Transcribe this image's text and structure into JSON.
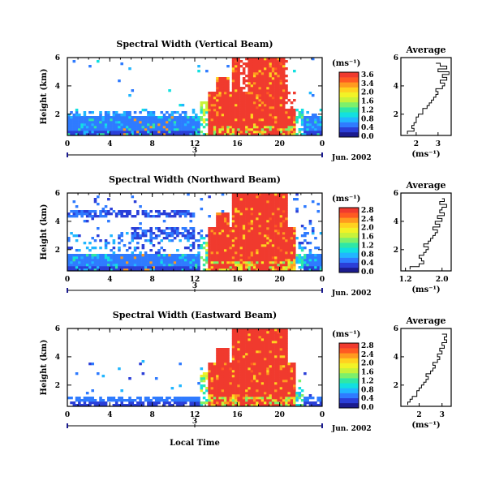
{
  "colormap": [
    "#1b1b8f",
    "#2b3fd8",
    "#2f7bff",
    "#21b6ff",
    "#12e0e0",
    "#2fe7a6",
    "#7df06b",
    "#c8f23a",
    "#f2f226",
    "#ffd21f",
    "#ff9a1f",
    "#ff5a22",
    "#f03a2e"
  ],
  "chart_data": [
    {
      "type": "heatmap",
      "title": "Spectral Width (Vertical Beam)",
      "xlabel": "",
      "ylabel": "Height (km)",
      "xlim": [
        0,
        24
      ],
      "ylim": [
        0.5,
        6
      ],
      "xticks": [
        "0",
        "4",
        "8",
        "12",
        "16",
        "20",
        "0"
      ],
      "yticks": [
        "2",
        "4",
        "6"
      ],
      "date_label": "Jun. 2002",
      "day_label": "3",
      "colorbar": {
        "unit": "(ms⁻¹)",
        "ticks": [
          "3.6",
          "3.4",
          "2.0",
          "1.6",
          "1.2",
          "0.8",
          "0.4",
          "0.0"
        ]
      },
      "profile": {
        "title": "Average",
        "xlabel": "(ms⁻¹)",
        "xticks": [
          "2",
          "3"
        ],
        "xlim": [
          1.3,
          3.6
        ],
        "heights": [
          0.6,
          0.8,
          1.0,
          1.2,
          1.4,
          1.6,
          1.8,
          2.0,
          2.2,
          2.4,
          2.6,
          2.8,
          3.0,
          3.2,
          3.4,
          3.6,
          3.8,
          4.0,
          4.2,
          4.4,
          4.6,
          4.8,
          5.0,
          5.2,
          5.4,
          5.6
        ],
        "values": [
          1.6,
          1.9,
          1.8,
          1.9,
          2.0,
          2.0,
          2.1,
          2.3,
          2.3,
          2.5,
          2.6,
          2.7,
          2.8,
          2.9,
          3.0,
          2.9,
          3.2,
          3.3,
          3.1,
          3.4,
          3.2,
          3.5,
          3.0,
          3.4,
          3.1,
          2.9
        ]
      }
    },
    {
      "type": "heatmap",
      "title": "Spectral Width (Northward Beam)",
      "xlabel": "",
      "ylabel": "Height (km)",
      "xlim": [
        0,
        24
      ],
      "ylim": [
        0.5,
        6
      ],
      "xticks": [
        "0",
        "4",
        "8",
        "12",
        "16",
        "20",
        "0"
      ],
      "yticks": [
        "2",
        "4",
        "6"
      ],
      "date_label": "Jun. 2002",
      "day_label": "3",
      "colorbar": {
        "unit": "(ms⁻¹)",
        "ticks": [
          "2.8",
          "2.4",
          "2.0",
          "1.6",
          "1.2",
          "0.8",
          "0.4",
          "0.0"
        ]
      },
      "profile": {
        "title": "Average",
        "xlabel": "(ms⁻¹)",
        "xticks": [
          "1.2",
          "2.0"
        ],
        "xlim": [
          1.1,
          2.2
        ],
        "heights": [
          0.6,
          0.8,
          1.0,
          1.2,
          1.4,
          1.6,
          1.8,
          2.0,
          2.2,
          2.4,
          2.6,
          2.8,
          3.0,
          3.2,
          3.4,
          3.6,
          3.8,
          4.0,
          4.2,
          4.4,
          4.6,
          4.8,
          5.0,
          5.2,
          5.4,
          5.6
        ],
        "values": [
          1.3,
          1.5,
          1.6,
          1.55,
          1.5,
          1.6,
          1.65,
          1.7,
          1.6,
          1.7,
          1.75,
          1.8,
          1.85,
          1.9,
          1.8,
          1.95,
          1.85,
          2.0,
          1.9,
          2.05,
          1.95,
          2.0,
          2.1,
          1.95,
          2.05,
          2.0
        ]
      }
    },
    {
      "type": "heatmap",
      "title": "Spectral Width (Eastward Beam)",
      "xlabel": "Local Time",
      "ylabel": "Height (km)",
      "xlim": [
        0,
        24
      ],
      "ylim": [
        0.5,
        6
      ],
      "xticks": [
        "0",
        "4",
        "8",
        "12",
        "16",
        "20",
        "0"
      ],
      "yticks": [
        "2",
        "4",
        "6"
      ],
      "date_label": "Jun. 2002",
      "day_label": "3",
      "colorbar": {
        "unit": "(ms⁻¹)",
        "ticks": [
          "2.8",
          "2.4",
          "2.0",
          "1.6",
          "1.2",
          "0.8",
          "0.4",
          "0.0"
        ]
      },
      "profile": {
        "title": "Average",
        "xlabel": "(ms⁻¹)",
        "xticks": [
          "2",
          "3"
        ],
        "xlim": [
          1.2,
          3.4
        ],
        "heights": [
          0.6,
          0.8,
          1.0,
          1.2,
          1.4,
          1.6,
          1.8,
          2.0,
          2.2,
          2.4,
          2.6,
          2.8,
          3.0,
          3.2,
          3.4,
          3.6,
          3.8,
          4.0,
          4.2,
          4.4,
          4.6,
          4.8,
          5.0,
          5.2,
          5.4,
          5.6
        ],
        "values": [
          1.5,
          1.6,
          1.7,
          1.9,
          1.9,
          2.0,
          2.1,
          2.2,
          2.3,
          2.4,
          2.3,
          2.5,
          2.6,
          2.7,
          2.6,
          2.8,
          2.9,
          2.8,
          3.0,
          2.9,
          3.1,
          3.0,
          3.2,
          3.1,
          3.2,
          3.0
        ]
      }
    }
  ]
}
